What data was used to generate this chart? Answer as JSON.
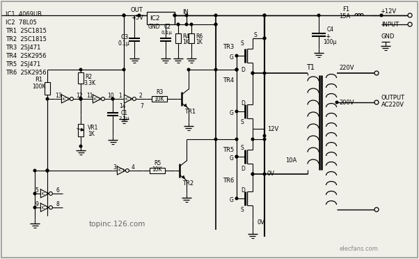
{
  "bg_color": "#f0f0e8",
  "line_color": "#000000",
  "component_list": [
    "IC1  4069UB",
    "IC2  78L05",
    "TR1  2SC1815",
    "TR2  2SC1815",
    "TR3  2SJ471",
    "TR4  2SK2956",
    "TR5  2SJ471",
    "TR6  2SK2956"
  ],
  "watermark": "topinc.126.com",
  "watermark2": "elecfans.com",
  "figsize": [
    6.02,
    3.72
  ],
  "dpi": 100
}
